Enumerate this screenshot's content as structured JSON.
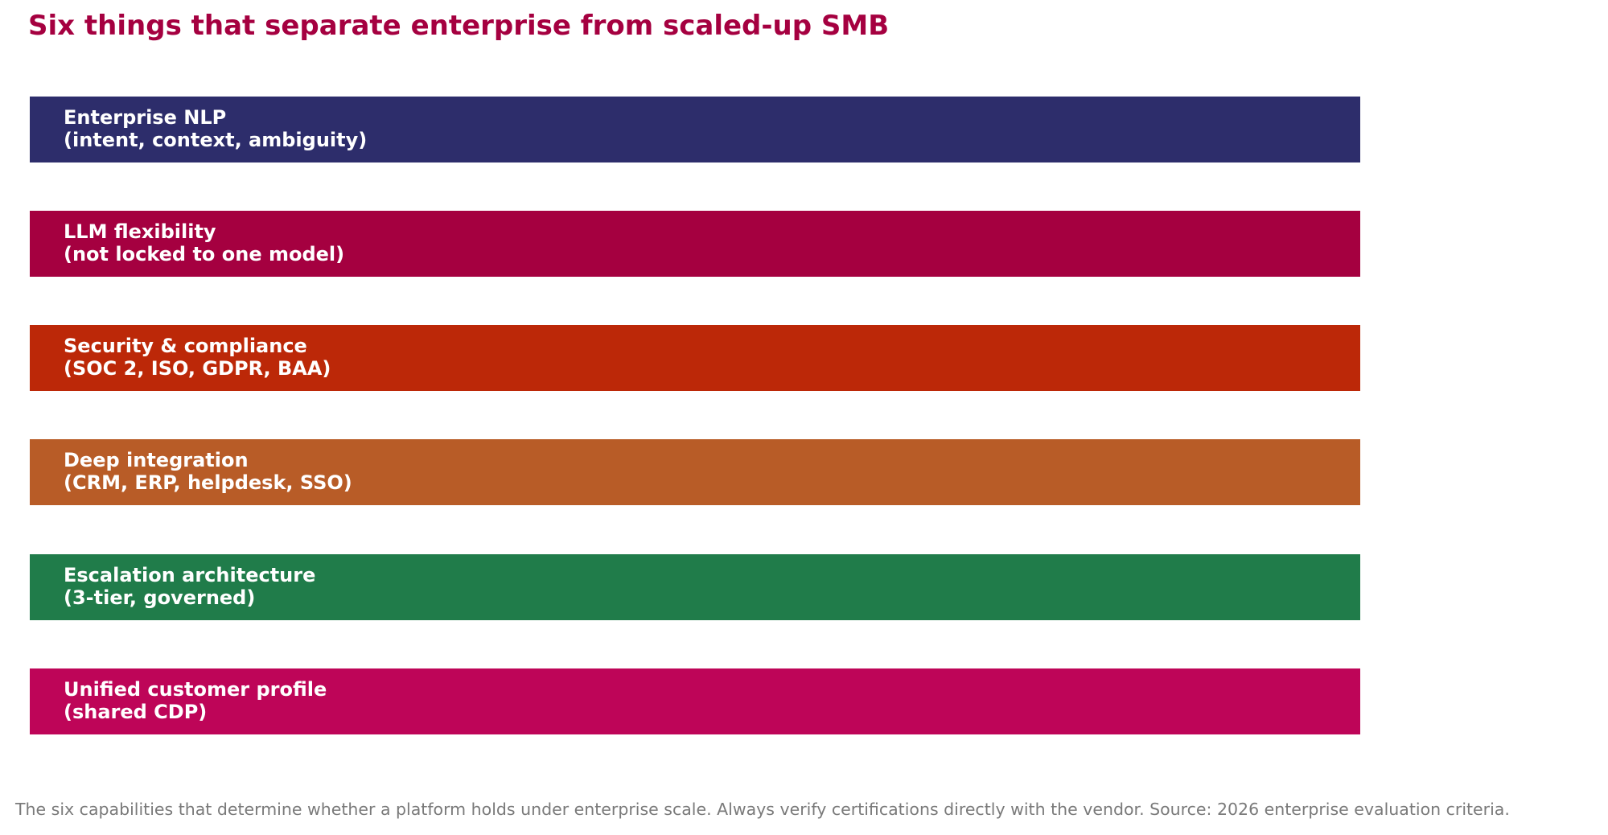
{
  "header": {
    "title": "Six things that separate enterprise from scaled-up SMB"
  },
  "items": [
    {
      "title": "Enterprise NLP",
      "detail": "(intent, context, ambiguity)"
    },
    {
      "title": "LLM flexibility",
      "detail": "(not locked to one model)"
    },
    {
      "title": "Security & compliance",
      "detail": "(SOC 2, ISO, GDPR, BAA)"
    },
    {
      "title": "Deep integration",
      "detail": "(CRM, ERP, helpdesk, SSO)"
    },
    {
      "title": "Escalation architecture",
      "detail": "(3-tier, governed)"
    },
    {
      "title": "Unified customer profile",
      "detail": "(shared CDP)"
    }
  ],
  "footer": {
    "note": "The six capabilities that determine whether a platform holds under enterprise scale. Always verify certifications directly with the vendor. Source: 2026 enterprise evaluation criteria."
  }
}
